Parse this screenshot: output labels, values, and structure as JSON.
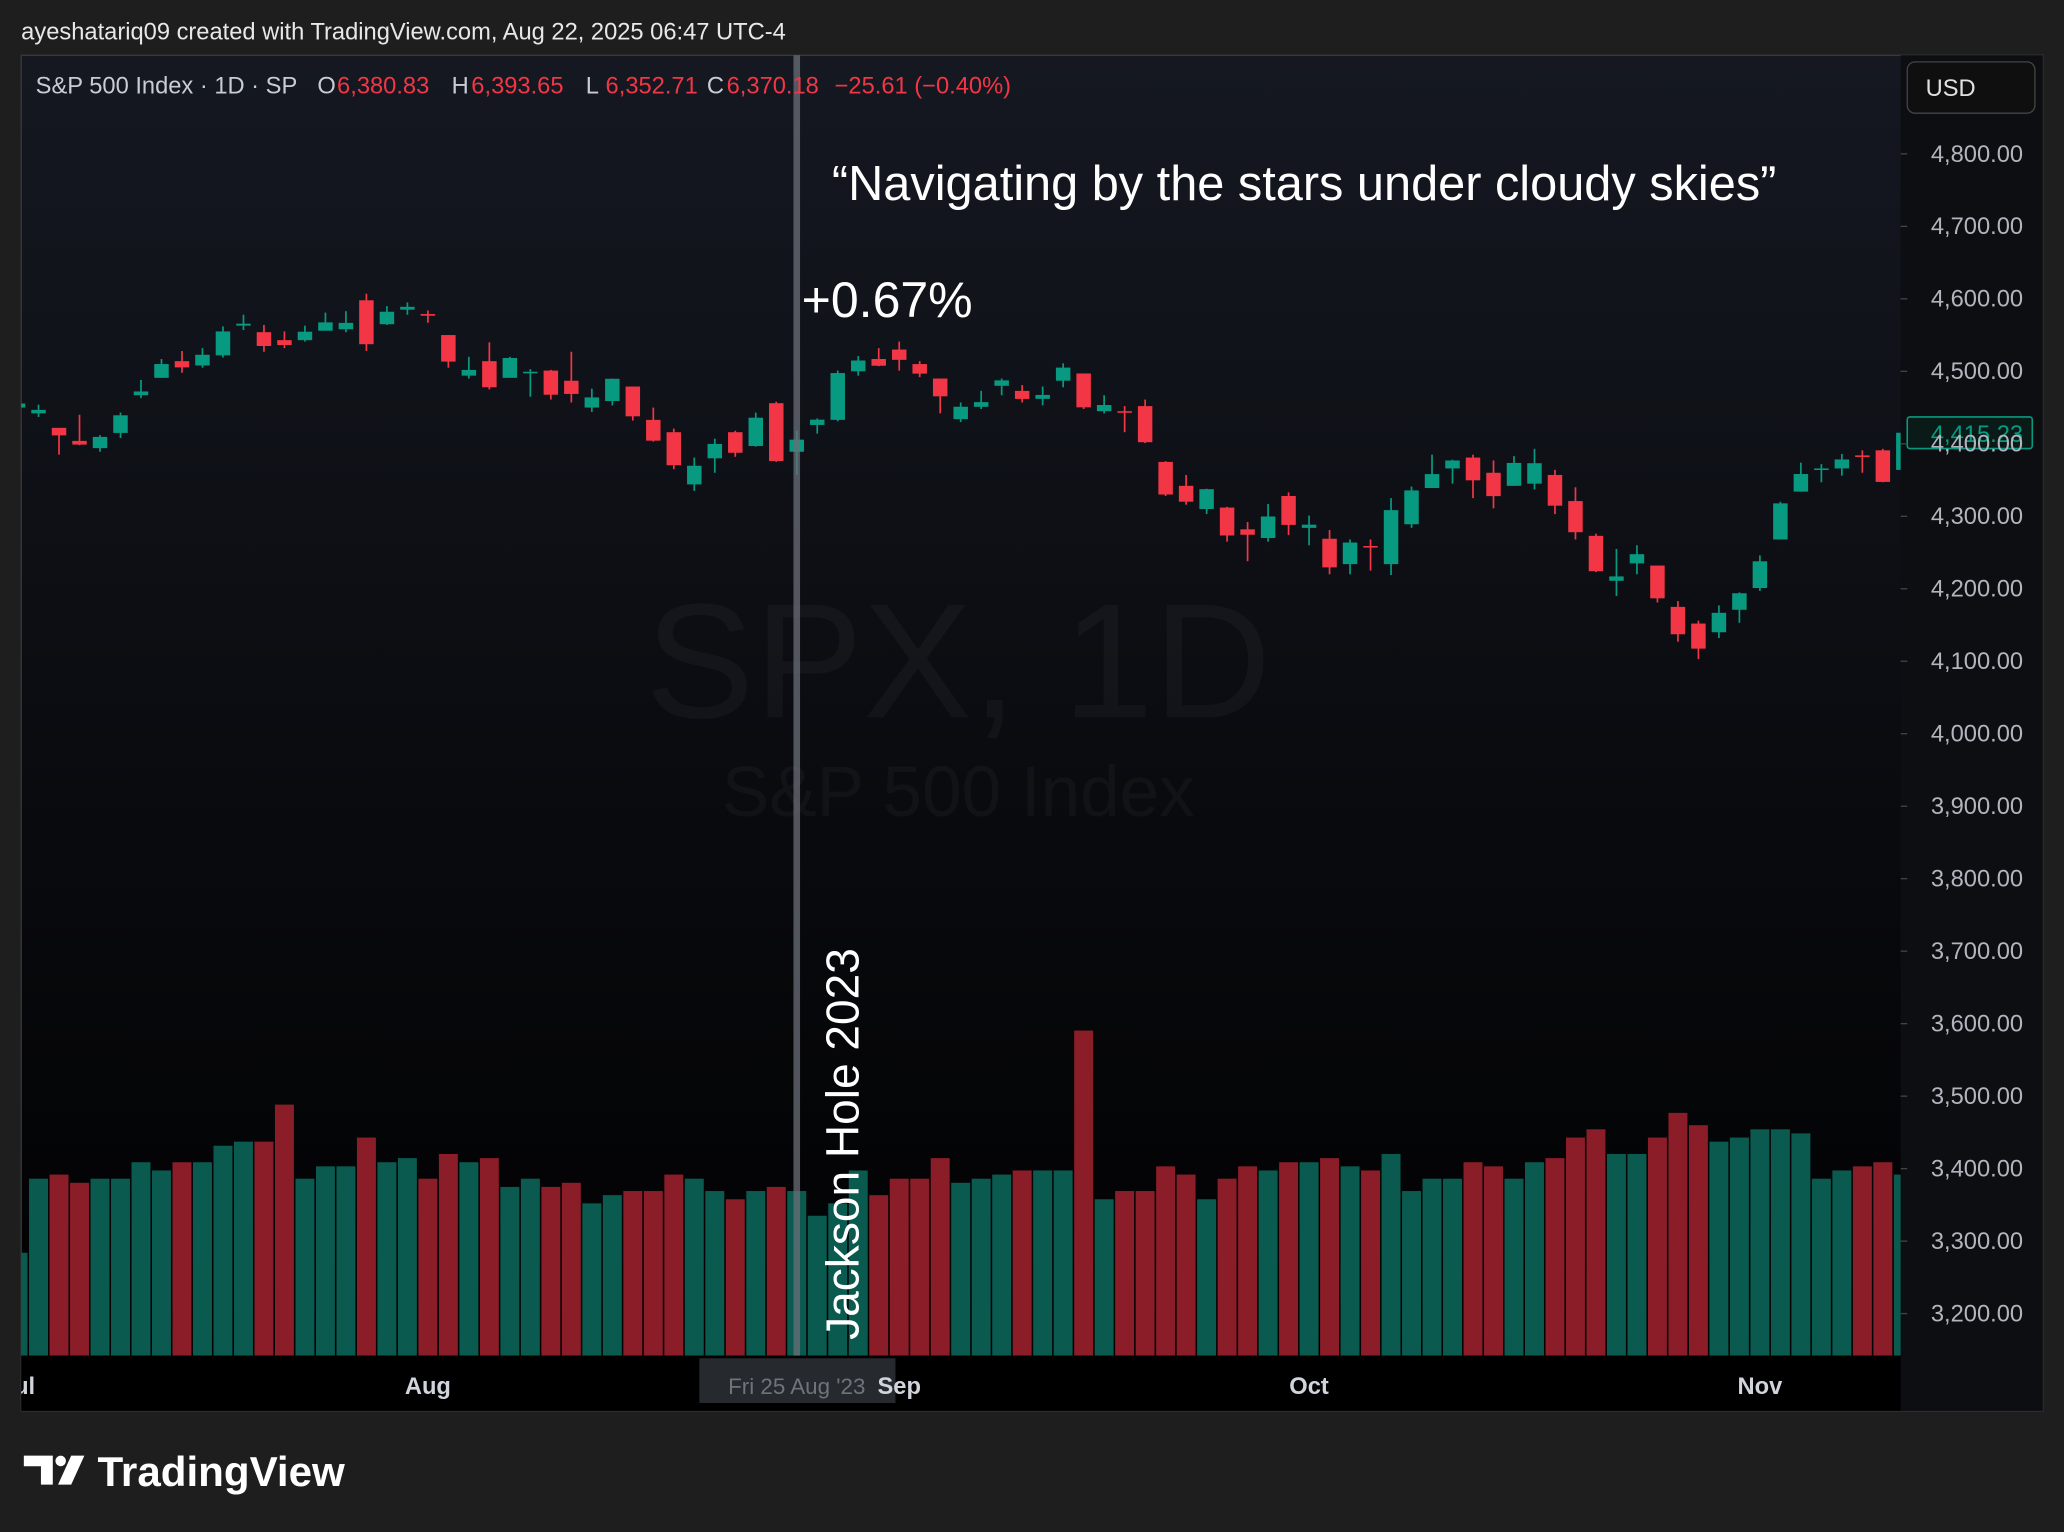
{
  "chart_data": {
    "type": "candlestick",
    "credit": "ayeshatariq09 created with TradingView.com, Aug 22, 2025 06:47 UTC-4",
    "title": "S&P 500 Index · 1D · SP",
    "legend_ohlc": [
      {
        "key": "O",
        "value": "6,380.83"
      },
      {
        "key": "H",
        "value": "6,393.65"
      },
      {
        "key": "L",
        "value": "6,352.71"
      },
      {
        "key": "C",
        "value": "6,370.18"
      }
    ],
    "legend_change": "−25.61 (−0.40%)",
    "currency": "USD",
    "watermark": "SPX, 1D",
    "watermark_subtitle": "S&P 500 Index",
    "annotations": {
      "quote": "“Navigating by the stars under cloudy skies”",
      "move": "+0.67%",
      "event": "Jackson Hole 2023"
    },
    "brand": "TradingView",
    "up_color": "#089981",
    "down_color": "#f23645",
    "volume_up_color": "#0b5a50",
    "volume_down_color": "#8a1d28",
    "grid": false,
    "categories": [
      "2023-07-03",
      "2023-07-05",
      "2023-07-06",
      "2023-07-07",
      "2023-07-10",
      "2023-07-11",
      "2023-07-12",
      "2023-07-13",
      "2023-07-14",
      "2023-07-17",
      "2023-07-18",
      "2023-07-19",
      "2023-07-20",
      "2023-07-21",
      "2023-07-24",
      "2023-07-25",
      "2023-07-26",
      "2023-07-27",
      "2023-07-28",
      "2023-07-31",
      "2023-08-01",
      "2023-08-02",
      "2023-08-03",
      "2023-08-04",
      "2023-08-07",
      "2023-08-08",
      "2023-08-09",
      "2023-08-10",
      "2023-08-11",
      "2023-08-14",
      "2023-08-15",
      "2023-08-16",
      "2023-08-17",
      "2023-08-18",
      "2023-08-21",
      "2023-08-22",
      "2023-08-23",
      "2023-08-24",
      "2023-08-25",
      "2023-08-28",
      "2023-08-29",
      "2023-08-30",
      "2023-08-31",
      "2023-09-01",
      "2023-09-05",
      "2023-09-06",
      "2023-09-07",
      "2023-09-08",
      "2023-09-11",
      "2023-09-12",
      "2023-09-13",
      "2023-09-14",
      "2023-09-15",
      "2023-09-18",
      "2023-09-19",
      "2023-09-20",
      "2023-09-21",
      "2023-09-22",
      "2023-09-25",
      "2023-09-26",
      "2023-09-27",
      "2023-09-28",
      "2023-09-29",
      "2023-10-02",
      "2023-10-03",
      "2023-10-04",
      "2023-10-05",
      "2023-10-06",
      "2023-10-09",
      "2023-10-10",
      "2023-10-11",
      "2023-10-12",
      "2023-10-13",
      "2023-10-16",
      "2023-10-17",
      "2023-10-18",
      "2023-10-19",
      "2023-10-20",
      "2023-10-23",
      "2023-10-24",
      "2023-10-25",
      "2023-10-26",
      "2023-10-27",
      "2023-10-30",
      "2023-10-31",
      "2023-11-01",
      "2023-11-02",
      "2023-11-03",
      "2023-11-06",
      "2023-11-07",
      "2023-11-08",
      "2023-11-09",
      "2023-11-10"
    ],
    "open": [
      4450,
      4442,
      4422,
      4404,
      4394,
      4415,
      4467,
      4491,
      4514,
      4508,
      4522,
      4563,
      4554,
      4543,
      4543,
      4556,
      4558,
      4598,
      4565,
      4585,
      4579,
      4550,
      4494,
      4514,
      4491,
      4498,
      4501,
      4487,
      4450,
      4459,
      4479,
      4433,
      4416,
      4344,
      4380,
      4416,
      4397,
      4456,
      4389,
      4426,
      4433,
      4500,
      4517,
      4530,
      4510,
      4490,
      4434,
      4451,
      4480,
      4473,
      4462,
      4487,
      4497,
      4445,
      4445,
      4452,
      4375,
      4342,
      4310,
      4312,
      4282,
      4270,
      4328,
      4284,
      4269,
      4234,
      4259,
      4234,
      4289,
      4339,
      4366,
      4381,
      4360,
      4342,
      4345,
      4357,
      4321,
      4273,
      4211,
      4235,
      4232,
      4175,
      4152,
      4140,
      4171,
      4201,
      4268,
      4334,
      4365,
      4366,
      4384,
      4391,
      4364
    ],
    "high": [
      4456,
      4454,
      4422,
      4440,
      4412,
      4443,
      4488,
      4517,
      4528,
      4532,
      4562,
      4578,
      4564,
      4555,
      4563,
      4581,
      4583,
      4607,
      4590,
      4595,
      4584,
      4550,
      4520,
      4540,
      4520,
      4503,
      4502,
      4527,
      4476,
      4490,
      4479,
      4450,
      4421,
      4381,
      4407,
      4418,
      4443,
      4458,
      4418,
      4435,
      4501,
      4521,
      4532,
      4541,
      4514,
      4490,
      4457,
      4473,
      4490,
      4481,
      4479,
      4511,
      4497,
      4467,
      4452,
      4461,
      4376,
      4357,
      4338,
      4313,
      4292,
      4317,
      4333,
      4301,
      4281,
      4268,
      4268,
      4325,
      4341,
      4385,
      4378,
      4385,
      4377,
      4383,
      4393,
      4364,
      4340,
      4276,
      4255,
      4260,
      4232,
      4183,
      4156,
      4177,
      4195,
      4246,
      4320,
      4374,
      4372,
      4386,
      4391,
      4393,
      4418
    ],
    "low": [
      4442,
      4437,
      4385,
      4398,
      4389,
      4408,
      4463,
      4491,
      4498,
      4505,
      4519,
      4557,
      4527,
      4532,
      4541,
      4556,
      4554,
      4528,
      4564,
      4578,
      4567,
      4505,
      4490,
      4475,
      4491,
      4465,
      4461,
      4457,
      4444,
      4453,
      4432,
      4403,
      4365,
      4335,
      4360,
      4382,
      4396,
      4375,
      4357,
      4414,
      4431,
      4494,
      4507,
      4501,
      4492,
      4442,
      4430,
      4448,
      4467,
      4457,
      4453,
      4478,
      4448,
      4442,
      4416,
      4401,
      4328,
      4316,
      4303,
      4265,
      4238,
      4265,
      4274,
      4260,
      4220,
      4220,
      4225,
      4219,
      4284,
      4339,
      4345,
      4325,
      4311,
      4342,
      4337,
      4303,
      4268,
      4223,
      4190,
      4220,
      4181,
      4127,
      4103,
      4132,
      4153,
      4197,
      4268,
      4334,
      4347,
      4356,
      4360,
      4347,
      4363
    ],
    "close": [
      4455.6,
      4446.8,
      4411.6,
      4398.9,
      4409.5,
      4439.3,
      4472.2,
      4510,
      4505.4,
      4522.8,
      4555,
      4565.7,
      4534.9,
      4536.3,
      4554.6,
      4567.5,
      4566.8,
      4537.4,
      4582.2,
      4589,
      4576.7,
      4513.4,
      4501.9,
      4478,
      4518.4,
      4499.4,
      4467.7,
      4468.8,
      4464,
      4489.7,
      4437.9,
      4404.3,
      4370.4,
      4369.7,
      4399.8,
      4387.6,
      4436,
      4376.3,
      4405.7,
      4433.3,
      4497.6,
      4514.9,
      4507.7,
      4515.8,
      4496.8,
      4465.5,
      4451.1,
      4457.5,
      4487.5,
      4461.9,
      4467.4,
      4505.1,
      4450.3,
      4453.5,
      4444,
      4402.2,
      4330,
      4320.1,
      4337.4,
      4273.5,
      4274.5,
      4299.7,
      4288.1,
      4288.4,
      4229.5,
      4263.8,
      4258.2,
      4308.5,
      4335.7,
      4358.2,
      4377,
      4349.6,
      4327.8,
      4373.6,
      4373.2,
      4314.6,
      4278,
      4224.2,
      4217,
      4247.7,
      4186.8,
      4137.2,
      4117.4,
      4166.8,
      4193.8,
      4237.9,
      4317.8,
      4358.3,
      4366,
      4378.4,
      4382.8,
      4347.4,
      4415.23
    ],
    "volume": [
      2.5,
      4.3,
      4.4,
      4.2,
      4.3,
      4.3,
      4.7,
      4.5,
      4.7,
      4.7,
      5.1,
      5.2,
      5.2,
      6.1,
      4.3,
      4.6,
      4.6,
      5.3,
      4.7,
      4.8,
      4.3,
      4.9,
      4.7,
      4.8,
      4.1,
      4.3,
      4.1,
      4.2,
      3.7,
      3.9,
      4.0,
      4.0,
      4.4,
      4.3,
      4.0,
      3.8,
      4.0,
      4.1,
      4.0,
      3.4,
      3.7,
      4.5,
      3.9,
      4.3,
      4.3,
      4.8,
      4.2,
      4.3,
      4.4,
      4.5,
      4.5,
      4.5,
      7.9,
      3.8,
      4.0,
      4.0,
      4.6,
      4.4,
      3.8,
      4.3,
      4.6,
      4.5,
      4.7,
      4.7,
      4.8,
      4.6,
      4.5,
      4.9,
      4.0,
      4.3,
      4.3,
      4.7,
      4.6,
      4.3,
      4.7,
      4.8,
      5.3,
      5.5,
      4.9,
      4.9,
      5.3,
      5.9,
      5.6,
      5.2,
      5.3,
      5.5,
      5.5,
      5.4,
      4.3,
      4.5,
      4.6,
      4.7,
      4.4
    ],
    "last_price_label": "4,415.23",
    "ylim": [
      3142,
      4936
    ],
    "yticks": [
      {
        "value": 3200,
        "label": "3,200.00"
      },
      {
        "value": 3300,
        "label": "3,300.00"
      },
      {
        "value": 3400,
        "label": "3,400.00"
      },
      {
        "value": 3500,
        "label": "3,500.00"
      },
      {
        "value": 3600,
        "label": "3,600.00"
      },
      {
        "value": 3700,
        "label": "3,700.00"
      },
      {
        "value": 3800,
        "label": "3,800.00"
      },
      {
        "value": 3900,
        "label": "3,900.00"
      },
      {
        "value": 4000,
        "label": "4,000.00"
      },
      {
        "value": 4100,
        "label": "4,100.00"
      },
      {
        "value": 4200,
        "label": "4,200.00"
      },
      {
        "value": 4300,
        "label": "4,300.00"
      },
      {
        "value": 4400,
        "label": "4,400.00"
      },
      {
        "value": 4500,
        "label": "4,500.00"
      },
      {
        "value": 4600,
        "label": "4,600.00"
      },
      {
        "value": 4700,
        "label": "4,700.00"
      },
      {
        "value": 4800,
        "label": "4,800.00"
      }
    ],
    "xticks": [
      {
        "value": "2023-07-03",
        "label": "Jul"
      },
      {
        "value": "2023-08-01",
        "label": "Aug"
      },
      {
        "value": "2023-09-01",
        "label": "Sep"
      },
      {
        "value": "2023-10-02",
        "label": "Oct"
      },
      {
        "value": "2023-11-01",
        "label": "Nov"
      }
    ],
    "crosshair": {
      "value": "2023-08-25",
      "label": "Fri 25 Aug '23"
    }
  }
}
